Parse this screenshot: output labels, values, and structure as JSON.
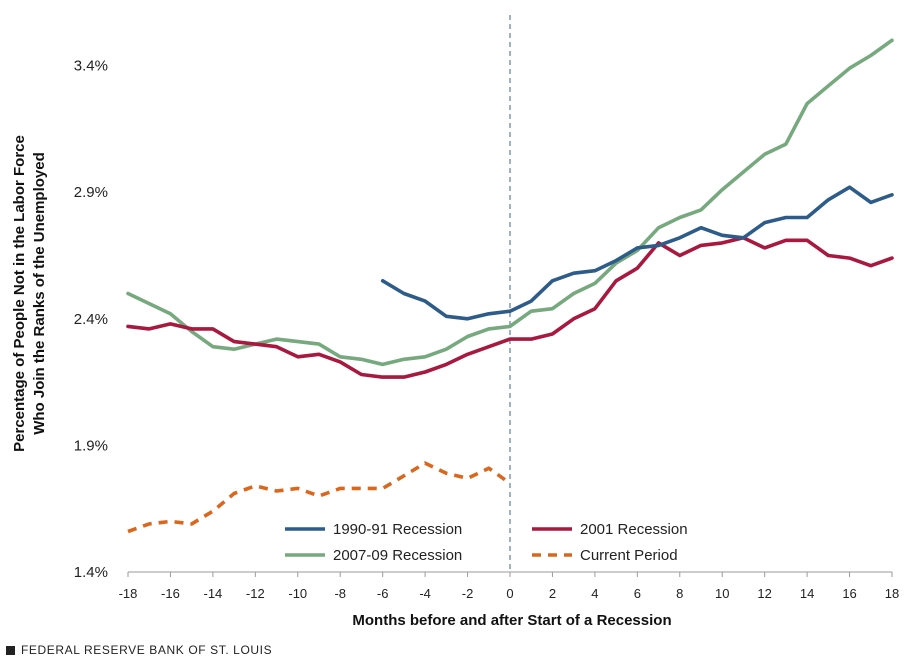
{
  "chart_data": {
    "type": "line",
    "title": "",
    "xlabel": "Months before and after Start of a Recession",
    "ylabel": "Percentage of People Not in the Labor Force Who Join the Ranks of the Unemployed",
    "ylabel_lines": [
      "Percentage of People Not in the Labor Force",
      "Who Join the Ranks of the Unemployed"
    ],
    "xlim": [
      -18,
      18
    ],
    "ylim": [
      1.4,
      3.6
    ],
    "x_ticks": [
      -18,
      -16,
      -14,
      -12,
      -10,
      -8,
      -6,
      -4,
      -2,
      0,
      2,
      4,
      6,
      8,
      10,
      12,
      14,
      16,
      18
    ],
    "x_tick_labels": [
      "-18",
      "-16",
      "-14",
      "-12",
      "-10",
      "-8",
      "-6",
      "-4",
      "-2",
      "0",
      "2",
      "4",
      "6",
      "8",
      "10",
      "12",
      "14",
      "16",
      "18"
    ],
    "y_ticks": [
      1.4,
      1.9,
      2.4,
      2.9,
      3.4
    ],
    "y_tick_labels": [
      "1.4%",
      "1.9%",
      "2.4%",
      "2.9%",
      "3.4%"
    ],
    "reference_line_x": 0,
    "legend_position": "bottom-center",
    "series": [
      {
        "name": "1990-91 Recession",
        "color": "#2E5C8A",
        "dash": "solid",
        "x": [
          -6,
          -5,
          -4,
          -3,
          -2,
          -1,
          0,
          1,
          2,
          3,
          4,
          5,
          6,
          7,
          8,
          9,
          10,
          11,
          12,
          13,
          14,
          15,
          16,
          17,
          18
        ],
        "values": [
          2.55,
          2.5,
          2.47,
          2.41,
          2.4,
          2.42,
          2.43,
          2.47,
          2.55,
          2.58,
          2.59,
          2.63,
          2.68,
          2.69,
          2.72,
          2.76,
          2.73,
          2.72,
          2.78,
          2.8,
          2.8,
          2.87,
          2.92,
          2.86,
          2.89
        ]
      },
      {
        "name": "2001 Recession",
        "color": "#A8183F",
        "dash": "solid",
        "x": [
          -18,
          -17,
          -16,
          -15,
          -14,
          -13,
          -12,
          -11,
          -10,
          -9,
          -8,
          -7,
          -6,
          -5,
          -4,
          -3,
          -2,
          -1,
          0,
          1,
          2,
          3,
          4,
          5,
          6,
          7,
          8,
          9,
          10,
          11,
          12,
          13,
          14,
          15,
          16,
          17,
          18
        ],
        "values": [
          2.37,
          2.36,
          2.38,
          2.36,
          2.36,
          2.31,
          2.3,
          2.29,
          2.25,
          2.26,
          2.23,
          2.18,
          2.17,
          2.17,
          2.19,
          2.22,
          2.26,
          2.29,
          2.32,
          2.32,
          2.34,
          2.4,
          2.44,
          2.55,
          2.6,
          2.7,
          2.65,
          2.69,
          2.7,
          2.72,
          2.68,
          2.71,
          2.71,
          2.65,
          2.64,
          2.61,
          2.64
        ]
      },
      {
        "name": "2007-09 Recession",
        "color": "#77A97F",
        "dash": "solid",
        "x": [
          -18,
          -17,
          -16,
          -15,
          -14,
          -13,
          -12,
          -11,
          -10,
          -9,
          -8,
          -7,
          -6,
          -5,
          -4,
          -3,
          -2,
          -1,
          0,
          1,
          2,
          3,
          4,
          5,
          6,
          7,
          8,
          9,
          10,
          11,
          12,
          13,
          14,
          15,
          16,
          17,
          18
        ],
        "values": [
          2.5,
          2.46,
          2.42,
          2.35,
          2.29,
          2.28,
          2.3,
          2.32,
          2.31,
          2.3,
          2.25,
          2.24,
          2.22,
          2.24,
          2.25,
          2.28,
          2.33,
          2.36,
          2.37,
          2.43,
          2.44,
          2.5,
          2.54,
          2.62,
          2.67,
          2.76,
          2.8,
          2.83,
          2.91,
          2.98,
          3.05,
          3.09,
          3.25,
          3.32,
          3.39,
          3.44,
          3.5
        ]
      },
      {
        "name": "Current Period",
        "color": "#D9681E",
        "dash": "dashed",
        "x": [
          -18,
          -17,
          -16,
          -15,
          -14,
          -13,
          -12,
          -11,
          -10,
          -9,
          -8,
          -7,
          -6,
          -5,
          -4,
          -3,
          -2,
          -1,
          0
        ],
        "values": [
          1.56,
          1.59,
          1.6,
          1.59,
          1.64,
          1.71,
          1.74,
          1.72,
          1.73,
          1.7,
          1.73,
          1.73,
          1.73,
          1.78,
          1.83,
          1.79,
          1.77,
          1.81,
          1.75
        ]
      }
    ]
  },
  "footer": {
    "source": "FEDERAL RESERVE BANK OF ST. LOUIS"
  }
}
